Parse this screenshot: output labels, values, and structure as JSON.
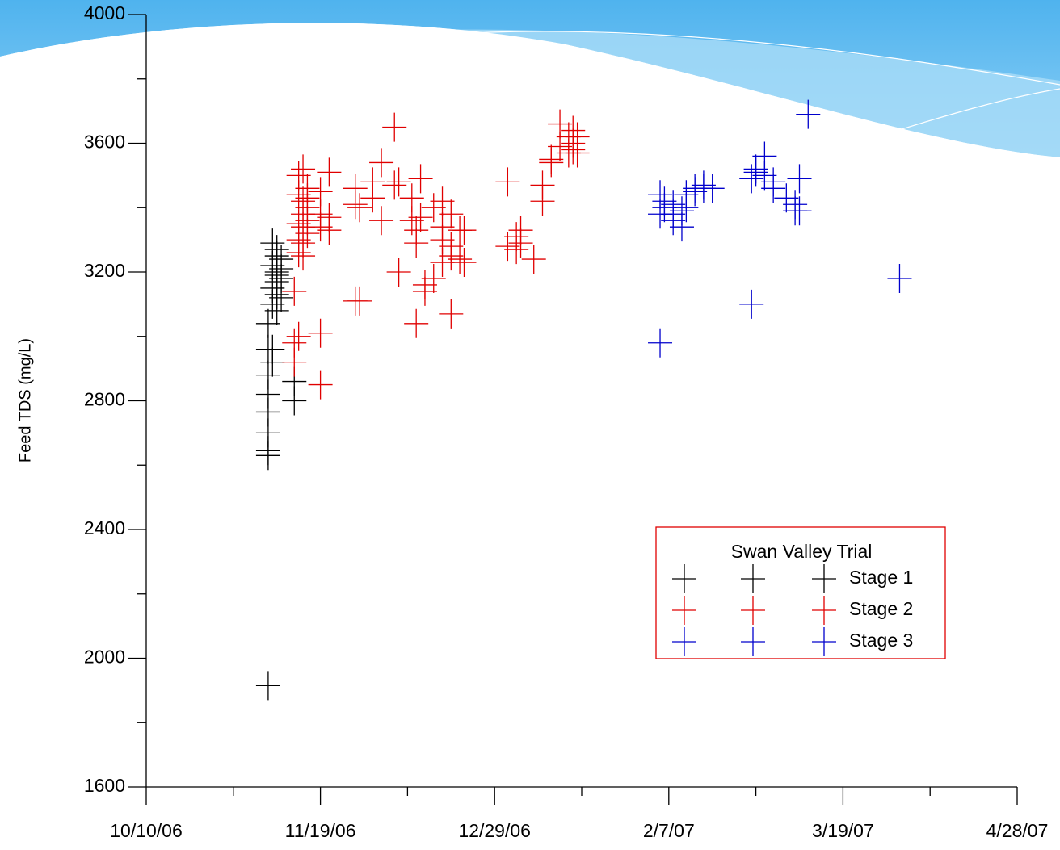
{
  "chart_data": {
    "type": "scatter",
    "y_label": "Feed TDS (mg/L)",
    "legend_title": "Swan Valley Trial",
    "legend": "lower right",
    "xlim": [
      "2006-10-10",
      "2007-04-28"
    ],
    "xticks": [
      {
        "value": "2006-10-10",
        "label": "10/10/06"
      },
      {
        "value": "2006-11-19",
        "label": "11/19/06"
      },
      {
        "value": "2006-12-29",
        "label": "12/29/06"
      },
      {
        "value": "2007-02-07",
        "label": "2/7/07"
      },
      {
        "value": "2007-03-19",
        "label": "3/19/07"
      },
      {
        "value": "2007-04-28",
        "label": "4/28/07"
      }
    ],
    "xminor_ticks": [
      "2006-10-30",
      "2006-12-09",
      "2007-01-18",
      "2007-02-27",
      "2007-04-08"
    ],
    "ylim": [
      1600,
      4000
    ],
    "yticks": [
      1600,
      2000,
      2400,
      2800,
      3200,
      3600,
      4000
    ],
    "yminor_ticks": [
      1800,
      2200,
      2600,
      3000,
      3400,
      3800
    ],
    "series": [
      {
        "name": "Stage 1",
        "color": "#000000",
        "x": [
          "2006-11-07",
          "2006-11-07",
          "2006-11-07",
          "2006-11-07",
          "2006-11-07",
          "2006-11-07",
          "2006-11-07",
          "2006-11-07",
          "2006-11-07",
          "2006-11-08",
          "2006-11-08",
          "2006-11-08",
          "2006-11-08",
          "2006-11-08",
          "2006-11-08",
          "2006-11-09",
          "2006-11-09",
          "2006-11-09",
          "2006-11-09",
          "2006-11-09",
          "2006-11-09",
          "2006-11-09",
          "2006-11-10",
          "2006-11-10",
          "2006-11-10",
          "2006-11-10",
          "2006-11-13",
          "2006-11-13"
        ],
        "values": [
          1915,
          2630,
          2645,
          2700,
          2765,
          2820,
          2880,
          2960,
          3040,
          2920,
          2960,
          3290,
          3220,
          3150,
          3100,
          3250,
          3200,
          3170,
          3130,
          3080,
          3270,
          3190,
          3240,
          3180,
          3120,
          3210,
          2800,
          2860
        ]
      },
      {
        "name": "Stage 2",
        "color": "#e00000",
        "x": [
          "2006-11-13",
          "2006-11-13",
          "2006-11-13",
          "2006-11-14",
          "2006-11-14",
          "2006-11-14",
          "2006-11-14",
          "2006-11-14",
          "2006-11-14",
          "2006-11-15",
          "2006-11-15",
          "2006-11-15",
          "2006-11-15",
          "2006-11-15",
          "2006-11-15",
          "2006-11-16",
          "2006-11-16",
          "2006-11-16",
          "2006-11-16",
          "2006-11-16",
          "2006-11-19",
          "2006-11-19",
          "2006-11-19",
          "2006-11-19",
          "2006-11-19",
          "2006-11-21",
          "2006-11-21",
          "2006-11-21",
          "2006-11-27",
          "2006-11-27",
          "2006-11-27",
          "2006-11-28",
          "2006-11-28",
          "2006-12-01",
          "2006-12-01",
          "2006-12-03",
          "2006-12-03",
          "2006-12-06",
          "2006-12-06",
          "2006-12-07",
          "2006-12-07",
          "2006-12-10",
          "2006-12-10",
          "2006-12-11",
          "2006-12-11",
          "2006-12-11",
          "2006-12-12",
          "2006-12-12",
          "2006-12-13",
          "2006-12-13",
          "2006-12-15",
          "2006-12-15",
          "2006-12-17",
          "2006-12-17",
          "2006-12-17",
          "2006-12-17",
          "2006-12-19",
          "2006-12-19",
          "2006-12-19",
          "2006-12-19",
          "2006-12-21",
          "2006-12-21",
          "2006-12-22",
          "2006-12-22",
          "2007-01-01",
          "2007-01-01",
          "2007-01-03",
          "2007-01-03",
          "2007-01-04",
          "2007-01-04",
          "2007-01-07",
          "2007-01-09",
          "2007-01-09",
          "2007-01-11",
          "2007-01-11",
          "2007-01-13",
          "2007-01-13",
          "2007-01-15",
          "2007-01-15",
          "2007-01-16",
          "2007-01-16",
          "2007-01-16",
          "2007-01-17",
          "2007-01-17"
        ],
        "values": [
          3140,
          2920,
          2980,
          3000,
          3350,
          3440,
          3500,
          3300,
          3260,
          3520,
          3420,
          3380,
          3340,
          3290,
          3250,
          3460,
          3400,
          3360,
          3320,
          3430,
          3010,
          2850,
          3340,
          3380,
          3450,
          3510,
          3370,
          3330,
          3110,
          3460,
          3410,
          3110,
          3400,
          3430,
          3480,
          3540,
          3360,
          3650,
          3470,
          3200,
          3480,
          3430,
          3360,
          3330,
          3290,
          3040,
          3490,
          3370,
          3160,
          3140,
          3180,
          3400,
          3230,
          3300,
          3420,
          3340,
          3070,
          3380,
          3280,
          3250,
          3240,
          3330,
          3230,
          3330,
          3480,
          3280,
          3270,
          3310,
          3330,
          3290,
          3240,
          3420,
          3470,
          3540,
          3550,
          3590,
          3660,
          3620,
          3570,
          3640,
          3600,
          3580,
          3620,
          3570
        ]
      },
      {
        "name": "Stage 3",
        "color": "#0000cc",
        "x": [
          "2007-02-05",
          "2007-02-05",
          "2007-02-05",
          "2007-02-06",
          "2007-02-06",
          "2007-02-08",
          "2007-02-08",
          "2007-02-08",
          "2007-02-10",
          "2007-02-10",
          "2007-02-11",
          "2007-02-11",
          "2007-02-13",
          "2007-02-13",
          "2007-02-15",
          "2007-02-15",
          "2007-02-17",
          "2007-02-26",
          "2007-02-26",
          "2007-02-27",
          "2007-02-27",
          "2007-03-01",
          "2007-03-01",
          "2007-03-03",
          "2007-03-03",
          "2007-03-06",
          "2007-03-08",
          "2007-03-08",
          "2007-03-09",
          "2007-03-09",
          "2007-03-11",
          "2007-04-01"
        ],
        "values": [
          2980,
          3440,
          3380,
          3420,
          3400,
          3380,
          3410,
          3360,
          3340,
          3390,
          3440,
          3400,
          3460,
          3450,
          3470,
          3460,
          3460,
          3100,
          3490,
          3520,
          3510,
          3560,
          3500,
          3480,
          3460,
          3430,
          3410,
          3390,
          3490,
          3390,
          3690,
          3180
        ]
      }
    ]
  }
}
